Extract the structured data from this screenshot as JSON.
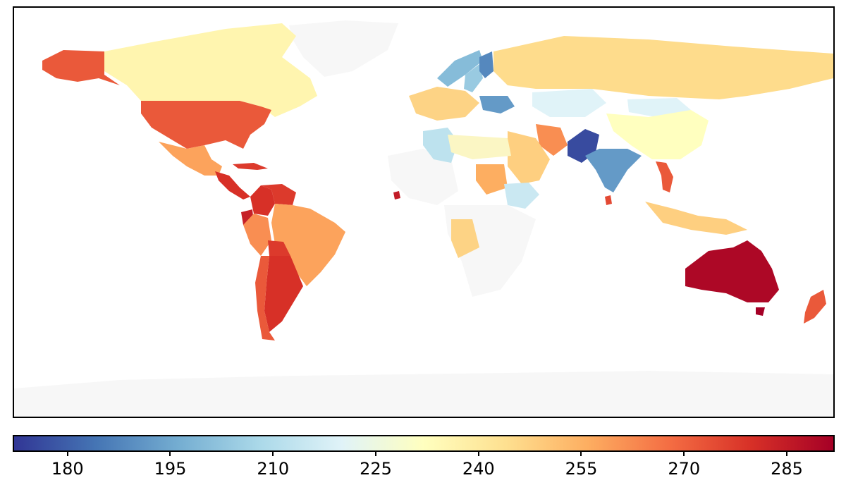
{
  "chart_data": {
    "type": "choropleth",
    "title": "",
    "colormap": "RdYlBu_r",
    "value_range": [
      172,
      292
    ],
    "colorbar": {
      "orientation": "horizontal",
      "ticks": [
        180,
        195,
        210,
        225,
        240,
        255,
        270,
        285
      ],
      "tick_labels": [
        "180",
        "195",
        "210",
        "225",
        "240",
        "255",
        "270",
        "285"
      ]
    },
    "no_data_color": "#f7f7f7",
    "regions": [
      {
        "name": "Australia",
        "value": 290
      },
      {
        "name": "New Zealand",
        "value": 272
      },
      {
        "name": "Alaska",
        "value": 272
      },
      {
        "name": "United States",
        "value": 272
      },
      {
        "name": "Canada",
        "value": 236
      },
      {
        "name": "Mexico",
        "value": 258
      },
      {
        "name": "Central America",
        "value": 280
      },
      {
        "name": "Colombia",
        "value": 280
      },
      {
        "name": "Venezuela",
        "value": 278
      },
      {
        "name": "Ecuador",
        "value": 284
      },
      {
        "name": "Peru",
        "value": 262
      },
      {
        "name": "Brazil",
        "value": 258
      },
      {
        "name": "Bolivia",
        "value": 278
      },
      {
        "name": "Argentina",
        "value": 280
      },
      {
        "name": "Chile",
        "value": 272
      },
      {
        "name": "Pakistan",
        "value": 176
      },
      {
        "name": "India",
        "value": 192
      },
      {
        "name": "Ukraine",
        "value": 192
      },
      {
        "name": "Finland",
        "value": 188
      },
      {
        "name": "Sweden",
        "value": 204
      },
      {
        "name": "Norway",
        "value": 200
      },
      {
        "name": "Russia",
        "value": 245
      },
      {
        "name": "China",
        "value": 232
      },
      {
        "name": "Mongolia",
        "value": 220
      },
      {
        "name": "Algeria",
        "value": 212
      },
      {
        "name": "Ethiopia",
        "value": 215
      },
      {
        "name": "Sudan",
        "value": 256
      },
      {
        "name": "Iran",
        "value": 262
      },
      {
        "name": "Saudi Arabia",
        "value": 248
      },
      {
        "name": "Vietnam",
        "value": 272
      },
      {
        "name": "Sri Lanka",
        "value": 275
      },
      {
        "name": "Sierra Leone",
        "value": 285
      },
      {
        "name": "Southeast Asia",
        "value": 248
      },
      {
        "name": "Kazakhstan",
        "value": 220
      }
    ]
  }
}
